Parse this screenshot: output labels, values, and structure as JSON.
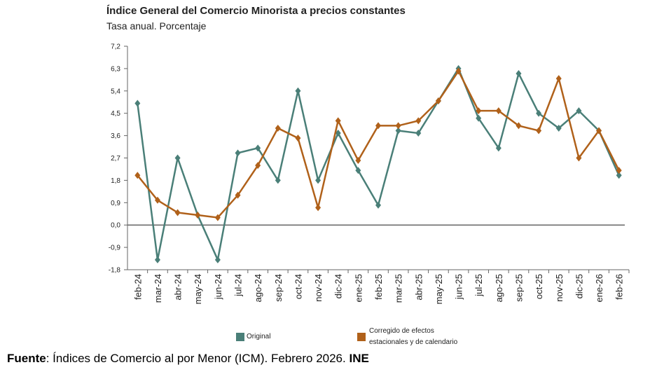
{
  "chart_data": {
    "type": "line",
    "title": "Índice General del Comercio Minorista a precios constantes",
    "subtitle": "Tasa anual. Porcentaje",
    "categories": [
      "feb-24",
      "mar-24",
      "abr-24",
      "may-24",
      "jun-24",
      "jul-24",
      "ago-24",
      "sep-24",
      "oct-24",
      "nov-24",
      "dic-24",
      "ene-25",
      "feb-25",
      "mar-25",
      "abr-25",
      "may-25",
      "jun-25",
      "jul-25",
      "ago-25",
      "sep-25",
      "oct-25",
      "nov-25",
      "dic-25",
      "ene-26",
      "feb-26"
    ],
    "series": [
      {
        "name": "Original",
        "color": "#4a7f78",
        "values": [
          4.9,
          -1.4,
          2.7,
          0.4,
          -1.4,
          2.9,
          3.1,
          1.8,
          5.4,
          1.8,
          3.7,
          2.2,
          0.8,
          3.8,
          3.7,
          5.0,
          6.3,
          4.3,
          3.1,
          6.1,
          4.5,
          3.9,
          4.6,
          3.8,
          2.0
        ]
      },
      {
        "name": "Corregido de efectos estacionales y de calendario",
        "color": "#b0611a",
        "values": [
          2.0,
          1.0,
          0.5,
          0.4,
          0.3,
          1.2,
          2.4,
          3.9,
          3.5,
          0.7,
          4.2,
          2.6,
          4.0,
          4.0,
          4.2,
          5.0,
          6.2,
          4.6,
          4.6,
          4.0,
          3.8,
          5.9,
          2.7,
          3.8,
          2.2
        ]
      }
    ],
    "ylim": [
      -1.8,
      7.2
    ],
    "yticks": [
      {
        "value": -1.8,
        "label": "-1,8"
      },
      {
        "value": -0.9,
        "label": "-0,9"
      },
      {
        "value": 0,
        "label": "0,0"
      },
      {
        "value": 0.9,
        "label": "0,9"
      },
      {
        "value": 1.8,
        "label": "1,8"
      },
      {
        "value": 2.7,
        "label": "2,7"
      },
      {
        "value": 3.6,
        "label": "3,6"
      },
      {
        "value": 4.5,
        "label": "4,5"
      },
      {
        "value": 5.4,
        "label": "5,4"
      },
      {
        "value": 6.3,
        "label": "6,3"
      },
      {
        "value": 7.2,
        "label": "7,2"
      }
    ],
    "grid": false
  },
  "footer": {
    "label": "Fuente",
    "text": ": Índices de Comercio al por Menor (ICM). Febrero 2026. ",
    "org": "INE"
  }
}
